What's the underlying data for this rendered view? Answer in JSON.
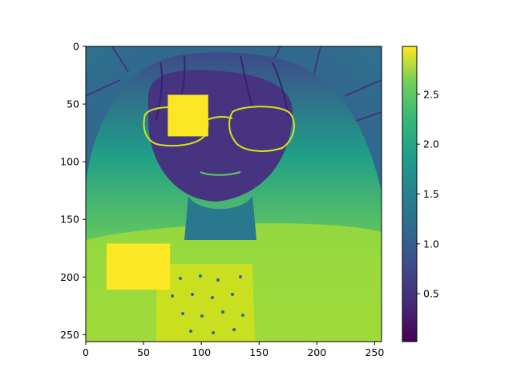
{
  "chart_data": {
    "type": "heatmap",
    "title": "",
    "xlabel": "",
    "ylabel": "",
    "image_size": [
      256,
      256
    ],
    "xlim": [
      0,
      256
    ],
    "ylim": [
      256,
      0
    ],
    "x_ticks": [
      0,
      50,
      100,
      150,
      200,
      250
    ],
    "y_ticks": [
      0,
      50,
      100,
      150,
      200,
      250
    ],
    "colormap": "viridis",
    "colorbar": {
      "range": [
        0.02,
        2.98
      ],
      "ticks": [
        0.5,
        1.0,
        1.5,
        2.0,
        2.5
      ],
      "tick_labels": [
        "0.5",
        "1.0",
        "1.5",
        "2.0",
        "2.5"
      ]
    },
    "image_description": "Grayscale portrait of a person with long hair and glasses rendered with viridis colormap; two saturated yellow rectangular occlusion patches.",
    "occlusion_patches": [
      {
        "x": [
          71,
          106
        ],
        "y": [
          42,
          78
        ],
        "value": 2.98
      },
      {
        "x": [
          18,
          73
        ],
        "y": [
          171,
          211
        ],
        "value": 2.98
      }
    ],
    "colors": {
      "axis": "#000000",
      "patch": "#fde725",
      "background": "#ffffff"
    }
  }
}
